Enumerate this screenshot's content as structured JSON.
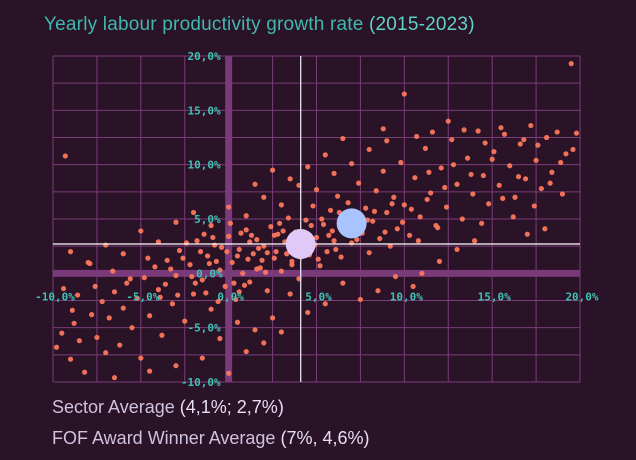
{
  "title": "Yearly labour productivity growth rate",
  "title_years": "(2015-2023)",
  "legend": {
    "sector_label": "Sector Average",
    "sector_value": "(4,1%; 2,7%)",
    "winner_label": "FOF Award Winner Average",
    "winner_value": "(7%, 4,6%)"
  },
  "colors": {
    "background": "#2a1227",
    "grid": "#7a3d78",
    "axis": "#7a3a7a",
    "points": "#ff7a5c",
    "sector_marker": "#e0c9f7",
    "winner_marker": "#a9c3ff",
    "title": "#3fb8ae"
  },
  "chart_data": {
    "type": "scatter",
    "xlim": [
      -10,
      20
    ],
    "ylim": [
      -10,
      20
    ],
    "x_ticks": [
      -10,
      -5,
      0,
      5,
      10,
      15,
      20
    ],
    "y_ticks": [
      -10,
      -5,
      0,
      5,
      10,
      15,
      20
    ],
    "x_tick_labels": [
      "-10,0%",
      "-5,0%",
      "0,0%",
      "5,0%",
      "10,0%",
      "15,0%",
      "20,0%"
    ],
    "y_tick_labels": [
      "-10,0%",
      "-5,0%",
      "0,0%",
      "5,0%",
      "10,0%",
      "15,0%",
      "20,0%"
    ],
    "grid": true,
    "reference_lines": {
      "vertical_x": 4.1,
      "horizontal_y": 2.7
    },
    "highlights": [
      {
        "name": "Sector Average",
        "x": 4.1,
        "y": 2.7
      },
      {
        "name": "FOF Award Winner Average",
        "x": 7,
        "y": 4.6
      }
    ],
    "points": [
      [
        -11.5,
        -8.2
      ],
      [
        -11.0,
        -7.5
      ],
      [
        -10.8,
        -6.0
      ],
      [
        -10.2,
        -8.8
      ],
      [
        -9.8,
        -6.8
      ],
      [
        -9.5,
        -5.5
      ],
      [
        -9.0,
        -7.9
      ],
      [
        -8.8,
        -4.6
      ],
      [
        -8.5,
        -6.2
      ],
      [
        -8.2,
        -9.1
      ],
      [
        -7.8,
        -3.8
      ],
      [
        -7.5,
        -5.9
      ],
      [
        -7.2,
        -2.6
      ],
      [
        -7.0,
        -7.3
      ],
      [
        -6.8,
        -4.1
      ],
      [
        -6.5,
        -1.7
      ],
      [
        -6.2,
        -6.6
      ],
      [
        -6.0,
        -3.2
      ],
      [
        -5.8,
        -0.9
      ],
      [
        -5.5,
        -5.0
      ],
      [
        -5.2,
        -2.3
      ],
      [
        -5.0,
        -7.8
      ],
      [
        -4.8,
        -0.4
      ],
      [
        -4.5,
        -3.9
      ],
      [
        -4.2,
        0.6
      ],
      [
        -4.0,
        -1.5
      ],
      [
        -3.8,
        -5.7
      ],
      [
        -3.5,
        1.2
      ],
      [
        -3.2,
        -2.8
      ],
      [
        -3.0,
        -0.2
      ],
      [
        -2.8,
        2.1
      ],
      [
        -2.5,
        -4.4
      ],
      [
        -2.2,
        0.8
      ],
      [
        -2.0,
        -1.9
      ],
      [
        -1.8,
        3.0
      ],
      [
        -1.5,
        -0.6
      ],
      [
        -1.2,
        1.6
      ],
      [
        -1.0,
        -3.3
      ],
      [
        -0.8,
        2.6
      ],
      [
        -0.5,
        0.3
      ],
      [
        -0.2,
        -1.2
      ],
      [
        0.0,
        3.4
      ],
      [
        0.2,
        1.0
      ],
      [
        0.4,
        -2.4
      ],
      [
        0.6,
        2.2
      ],
      [
        0.8,
        0.0
      ],
      [
        1.0,
        4.0
      ],
      [
        1.2,
        -0.8
      ],
      [
        1.4,
        1.8
      ],
      [
        1.6,
        3.1
      ],
      [
        1.8,
        0.5
      ],
      [
        2.0,
        2.5
      ],
      [
        2.2,
        -1.6
      ],
      [
        2.4,
        4.3
      ],
      [
        2.6,
        1.4
      ],
      [
        2.8,
        3.6
      ],
      [
        3.0,
        0.2
      ],
      [
        3.2,
        2.9
      ],
      [
        3.4,
        5.1
      ],
      [
        3.6,
        1.1
      ],
      [
        3.8,
        3.8
      ],
      [
        4.0,
        -0.5
      ],
      [
        4.2,
        2.3
      ],
      [
        4.4,
        4.9
      ],
      [
        4.6,
        1.7
      ],
      [
        4.8,
        6.2
      ],
      [
        5.0,
        3.3
      ],
      [
        5.2,
        0.7
      ],
      [
        5.4,
        4.5
      ],
      [
        5.6,
        2.0
      ],
      [
        5.8,
        5.8
      ],
      [
        6.0,
        3.0
      ],
      [
        6.2,
        7.1
      ],
      [
        6.4,
        1.5
      ],
      [
        6.6,
        4.2
      ],
      [
        6.8,
        6.5
      ],
      [
        7.0,
        2.8
      ],
      [
        7.2,
        5.4
      ],
      [
        7.4,
        8.3
      ],
      [
        7.6,
        3.7
      ],
      [
        7.8,
        6.0
      ],
      [
        8.0,
        1.9
      ],
      [
        8.2,
        4.8
      ],
      [
        8.4,
        7.6
      ],
      [
        8.6,
        3.2
      ],
      [
        8.8,
        9.4
      ],
      [
        9.0,
        5.6
      ],
      [
        9.2,
        2.5
      ],
      [
        9.4,
        7.0
      ],
      [
        9.6,
        4.1
      ],
      [
        9.8,
        10.2
      ],
      [
        10.0,
        6.3
      ],
      [
        10.3,
        3.5
      ],
      [
        10.6,
        8.8
      ],
      [
        10.9,
        5.2
      ],
      [
        11.2,
        11.5
      ],
      [
        11.5,
        7.4
      ],
      [
        11.8,
        4.4
      ],
      [
        12.1,
        9.7
      ],
      [
        12.4,
        6.1
      ],
      [
        12.7,
        12.3
      ],
      [
        13.0,
        8.2
      ],
      [
        13.3,
        5.0
      ],
      [
        13.6,
        10.6
      ],
      [
        13.9,
        7.3
      ],
      [
        14.2,
        13.1
      ],
      [
        14.5,
        9.0
      ],
      [
        14.8,
        6.4
      ],
      [
        15.1,
        11.2
      ],
      [
        15.4,
        8.1
      ],
      [
        15.7,
        12.8
      ],
      [
        16.0,
        9.9
      ],
      [
        16.3,
        7.0
      ],
      [
        16.6,
        11.9
      ],
      [
        16.9,
        8.7
      ],
      [
        17.2,
        13.6
      ],
      [
        17.5,
        10.4
      ],
      [
        17.8,
        7.8
      ],
      [
        18.1,
        12.5
      ],
      [
        18.4,
        9.3
      ],
      [
        18.7,
        13.0
      ],
      [
        19.2,
        11.0
      ],
      [
        19.6,
        11.4
      ],
      [
        16.2,
        5.2
      ],
      [
        17.0,
        3.6
      ],
      [
        18.0,
        4.1
      ],
      [
        14.0,
        3.0
      ],
      [
        13.0,
        2.2
      ],
      [
        12.0,
        1.1
      ],
      [
        11.0,
        0.0
      ],
      [
        10.5,
        -1.2
      ],
      [
        9.5,
        -0.3
      ],
      [
        8.5,
        -1.6
      ],
      [
        7.5,
        -2.4
      ],
      [
        6.5,
        -0.9
      ],
      [
        5.5,
        -2.8
      ],
      [
        4.5,
        -3.6
      ],
      [
        3.5,
        -1.9
      ],
      [
        2.5,
        -4.1
      ],
      [
        1.5,
        -5.2
      ],
      [
        0.5,
        -4.5
      ],
      [
        -0.5,
        -6.0
      ],
      [
        1.0,
        -7.2
      ],
      [
        2.0,
        -6.4
      ],
      [
        3.0,
        -5.4
      ],
      [
        -1.5,
        -7.8
      ],
      [
        -3.0,
        -8.5
      ],
      [
        -4.5,
        -9.0
      ],
      [
        0.0,
        -9.2
      ],
      [
        -6.5,
        -9.6
      ],
      [
        -9.3,
        10.8
      ],
      [
        -10.5,
        3.1
      ],
      [
        -9.0,
        2.0
      ],
      [
        -8.0,
        1.0
      ],
      [
        -7.0,
        2.6
      ],
      [
        -6.0,
        1.8
      ],
      [
        -5.0,
        3.9
      ],
      [
        -4.0,
        2.9
      ],
      [
        -3.0,
        4.7
      ],
      [
        -2.0,
        5.6
      ],
      [
        -1.0,
        4.4
      ],
      [
        0.0,
        6.1
      ],
      [
        1.0,
        5.3
      ],
      [
        2.0,
        7.0
      ],
      [
        3.0,
        6.3
      ],
      [
        4.0,
        8.1
      ],
      [
        5.0,
        7.7
      ],
      [
        6.0,
        9.2
      ],
      [
        7.0,
        10.1
      ],
      [
        8.0,
        11.4
      ],
      [
        9.0,
        12.2
      ],
      [
        10.0,
        16.5
      ],
      [
        12.5,
        14.0
      ],
      [
        8.8,
        13.3
      ],
      [
        6.5,
        12.4
      ],
      [
        5.5,
        10.9
      ],
      [
        4.5,
        9.8
      ],
      [
        3.5,
        8.7
      ],
      [
        2.5,
        9.5
      ],
      [
        1.5,
        8.2
      ],
      [
        19.5,
        19.3
      ],
      [
        19.8,
        12.9
      ],
      [
        18.9,
        10.2
      ],
      [
        17.6,
        11.8
      ],
      [
        16.8,
        12.3
      ],
      [
        15.5,
        13.4
      ],
      [
        14.6,
        12.0
      ],
      [
        13.4,
        13.2
      ],
      [
        11.6,
        13.0
      ],
      [
        10.7,
        12.6
      ],
      [
        1.2,
        2.9
      ],
      [
        1.9,
        1.2
      ],
      [
        2.6,
        3.5
      ],
      [
        3.3,
        1.8
      ],
      [
        0.7,
        3.7
      ],
      [
        -0.4,
        2.4
      ],
      [
        -1.1,
        0.9
      ],
      [
        -0.9,
        3.3
      ],
      [
        0.3,
        -0.9
      ],
      [
        1.6,
        0.4
      ],
      [
        2.2,
        1.9
      ],
      [
        2.9,
        4.6
      ],
      [
        3.7,
        2.6
      ],
      [
        4.3,
        3.4
      ],
      [
        4.9,
        2.6
      ],
      [
        5.3,
        5.0
      ],
      [
        5.9,
        3.9
      ],
      [
        6.3,
        5.6
      ],
      [
        6.9,
        4.0
      ],
      [
        7.3,
        3.1
      ],
      [
        7.9,
        4.9
      ],
      [
        8.3,
        5.7
      ],
      [
        8.9,
        3.8
      ],
      [
        9.3,
        6.4
      ],
      [
        9.9,
        4.7
      ],
      [
        10.4,
        5.9
      ],
      [
        10.8,
        3.0
      ],
      [
        11.3,
        6.8
      ],
      [
        11.9,
        4.2
      ],
      [
        12.3,
        7.9
      ],
      [
        -2.6,
        1.4
      ],
      [
        -2.1,
        -0.3
      ],
      [
        -1.6,
        2.0
      ],
      [
        -1.3,
        -1.8
      ],
      [
        -0.7,
        1.1
      ],
      [
        -0.1,
        2.0
      ],
      [
        0.5,
        1.6
      ],
      [
        0.9,
        -1.1
      ],
      [
        1.3,
        3.5
      ],
      [
        1.7,
        2.3
      ],
      [
        2.1,
        0.1
      ],
      [
        2.7,
        2.0
      ],
      [
        3.1,
        3.9
      ],
      [
        3.6,
        0.8
      ],
      [
        4.1,
        1.5
      ],
      [
        4.7,
        4.4
      ],
      [
        5.1,
        1.3
      ],
      [
        5.7,
        3.5
      ],
      [
        6.1,
        2.2
      ],
      [
        6.7,
        5.1
      ],
      [
        -3.6,
        -1.0
      ],
      [
        -3.3,
        0.4
      ],
      [
        -2.9,
        -2.0
      ],
      [
        -2.4,
        2.8
      ],
      [
        -1.9,
        -0.9
      ],
      [
        -1.4,
        3.6
      ],
      [
        -0.6,
        -2.6
      ],
      [
        0.1,
        4.6
      ],
      [
        0.6,
        -1.7
      ],
      [
        1.1,
        1.3
      ],
      [
        -8.6,
        -2.0
      ],
      [
        -7.6,
        -1.2
      ],
      [
        -6.6,
        0.2
      ],
      [
        -5.6,
        -0.5
      ],
      [
        -4.6,
        1.4
      ],
      [
        -3.9,
        -2.2
      ],
      [
        -7.9,
        0.9
      ],
      [
        -9.4,
        -1.4
      ],
      [
        -10.6,
        -3.0
      ],
      [
        -8.9,
        -3.4
      ],
      [
        14.4,
        4.6
      ],
      [
        15.6,
        6.9
      ],
      [
        16.5,
        8.9
      ],
      [
        17.4,
        6.2
      ],
      [
        18.3,
        8.3
      ],
      [
        19.0,
        7.3
      ],
      [
        15.0,
        10.5
      ],
      [
        13.8,
        9.1
      ],
      [
        12.8,
        10.0
      ],
      [
        11.4,
        9.3
      ]
    ]
  }
}
